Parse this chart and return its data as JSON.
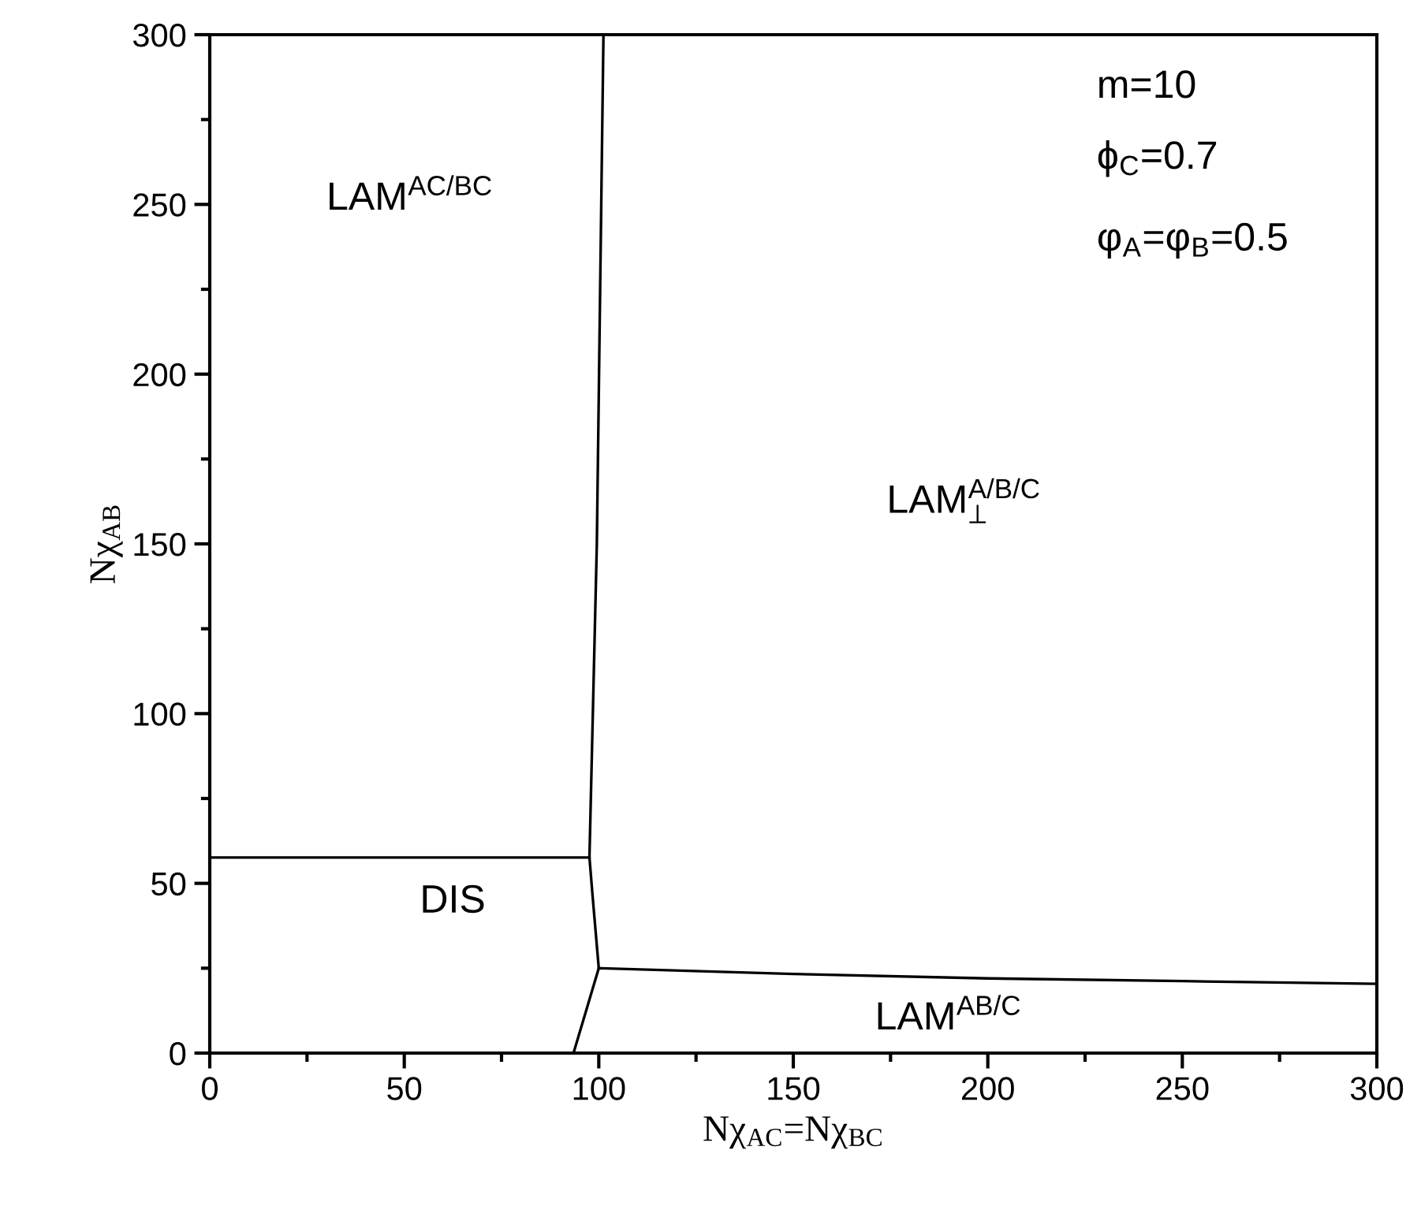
{
  "chart_data": {
    "type": "line",
    "xlabel": "Nχ$_{AC}$=Nχ$_{BC}$",
    "ylabel": "Nχ$_{AB}$",
    "series": [
      {
        "color": "#000000",
        "x": [
          101.2,
          99.5,
          97.6,
          98.5,
          100,
          93.5
        ],
        "values": [
          300,
          150,
          57.6,
          45,
          25,
          0
        ]
      },
      {
        "color": "#000000",
        "x": [
          0,
          97.6
        ],
        "values": [
          57.6,
          57.6
        ]
      },
      {
        "color": "#000000",
        "x": [
          100,
          150,
          200,
          250,
          300
        ],
        "values": [
          25,
          23.3,
          22,
          21.2,
          20.4
        ]
      }
    ],
    "xlim": [
      0,
      300
    ],
    "ylim": [
      0,
      300
    ],
    "xticks": [
      0,
      50,
      100,
      150,
      200,
      250,
      300
    ],
    "yticks": [
      0,
      50,
      100,
      150,
      200,
      250,
      300
    ],
    "grid": false,
    "legend": false,
    "marker": "none",
    "line_style": "solid",
    "annotations": [
      "LAM$^{AC/BC}$",
      "LAM$^{A/B/C}$$_{⊥}$",
      "DIS",
      "LAM$^{AB/C}$",
      "m=10",
      "ϕ$_{C}$=0.7",
      "φ$_{A}$=φ$_{B}$=0.5"
    ]
  }
}
